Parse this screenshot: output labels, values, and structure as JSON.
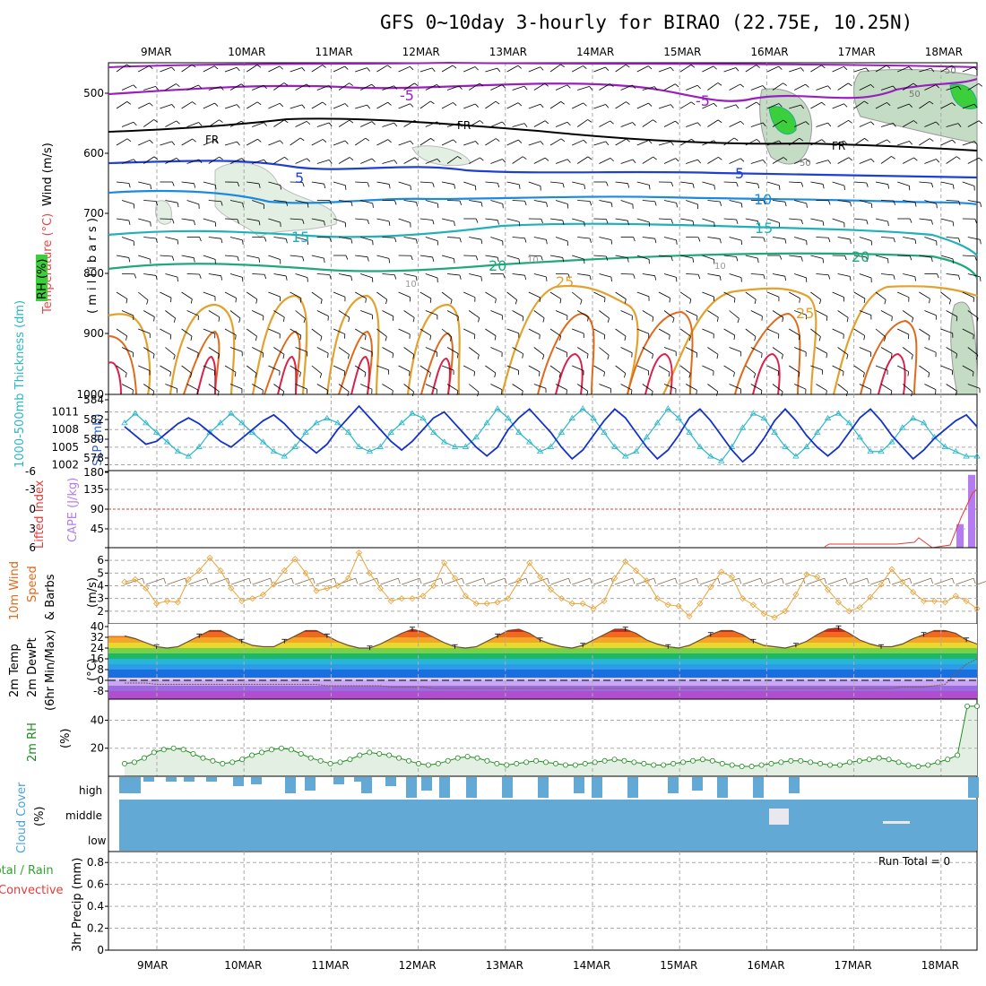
{
  "title": "GFS 0~10day 3-hourly for BIRAO (22.75E, 10.25N)",
  "dates": [
    "9MAR",
    "10MAR",
    "11MAR",
    "12MAR",
    "13MAR",
    "14MAR",
    "15MAR",
    "16MAR",
    "17MAR",
    "18MAR"
  ],
  "colors": {
    "rh_fill": "#e2efe2",
    "rh_mid": "#9fc99f",
    "rh_high": "#3ccf3c",
    "slp": "#1432c8",
    "thickness": "#2ab7c8",
    "cape": "#b47cf0",
    "lifted_index": "#e43b3b",
    "wind_speed": "#e8a43a",
    "barb": "#8a6d4e",
    "rh2m": "#1e8c1e",
    "cloud": "#62a9d6",
    "cloud_bg": "#f0f0f6"
  },
  "panels": {
    "upper": {
      "label_wind": "Wind (m/s)",
      "label_temp": "Temperature (°C)",
      "label_rh": "RH (%)",
      "label_mb": "( m i l l i b a r s )",
      "pressure_ticks": [
        "500",
        "600",
        "700",
        "800",
        "900",
        "1000"
      ],
      "isotherm_labels": [
        "-5",
        "-5",
        "FR",
        "FR",
        "FR",
        "5",
        "5",
        "10",
        "15",
        "15",
        "20",
        "20",
        "25",
        "25",
        "10",
        "10",
        "10",
        "50",
        "50",
        "50"
      ]
    },
    "slp": {
      "label_thick": "1000-500mb Thickness (dm)",
      "label_slp": "SLP (mb)",
      "left_ticks": [
        "584",
        "582",
        "580",
        "578"
      ],
      "right_ticks": [
        "1011",
        "1008",
        "1005",
        "1002"
      ]
    },
    "cape": {
      "label_li": "Lifted Index",
      "label_cape": "CAPE (J/kg)",
      "left_ticks": [
        "-6",
        "-3",
        "0",
        "3",
        "6"
      ],
      "right_ticks": [
        "180",
        "135",
        "90",
        "45"
      ]
    },
    "wind10": {
      "label1": "10m Wind",
      "label2": "Speed",
      "label3": "& Barbs",
      "unit": "(m/s)",
      "ticks": [
        "6",
        "5",
        "4",
        "3",
        "2"
      ]
    },
    "temp2m": {
      "label1": "2m Temp",
      "label2": "2m DewPt",
      "label3": "(6hr Min/Max)",
      "unit": "(°C)",
      "ticks": [
        "40",
        "32",
        "24",
        "16",
        "8",
        "0",
        "-8"
      ]
    },
    "rh2m": {
      "label": "2m RH",
      "unit": "(%)",
      "ticks": [
        "40",
        "20"
      ]
    },
    "cloud": {
      "label": "Cloud Cover",
      "unit": "(%)",
      "levels": [
        "high",
        "middle",
        "low"
      ]
    },
    "precip": {
      "label1": "3hr Precip (mm)",
      "label_total": "Total / Rain",
      "label_conv": "Convective",
      "run_total": "Run Total = 0",
      "ticks": [
        "0.8",
        "0.6",
        "0.4",
        "0.2",
        "0"
      ]
    }
  },
  "chart_data": [
    {
      "type": "line",
      "title": "1000-500mb Thickness (dm) / SLP (mb)",
      "x_unit": "3-hourly steps from 8MAR 12Z",
      "series": [
        {
          "name": "SLP (mb)",
          "values": [
            1008.5,
            1007,
            1005.5,
            1006,
            1007.5,
            1009,
            1010,
            1009,
            1007.5,
            1006,
            1005,
            1006.5,
            1008,
            1009.5,
            1010.5,
            1009,
            1007,
            1005.5,
            1004,
            1005.5,
            1008,
            1010,
            1012,
            1010,
            1008,
            1006,
            1004.5,
            1006,
            1008,
            1010,
            1011,
            1009,
            1007,
            1005,
            1003.5,
            1005,
            1008,
            1010,
            1011.5,
            1009.5,
            1007.5,
            1005,
            1003,
            1004.5,
            1007,
            1009.5,
            1011.5,
            1010,
            1007.5,
            1005,
            1003,
            1004.5,
            1007,
            1010,
            1011.5,
            1009.5,
            1007,
            1004.5,
            1002.5,
            1004,
            1006.5,
            1009.5,
            1011.5,
            1009.5,
            1007,
            1005,
            1003.5,
            1005,
            1007.5,
            1010,
            1011.5,
            1009.5,
            1007,
            1005,
            1003,
            1004.5,
            1006.5,
            1008,
            1009.5,
            1010.5,
            1008.5
          ]
        },
        {
          "name": "1000-500mb Thickness (dm)",
          "values": [
            582,
            583,
            582,
            581,
            580,
            579,
            578.5,
            579.5,
            581,
            582,
            583,
            582,
            581,
            580,
            579,
            578.5,
            579.5,
            581,
            582,
            582.5,
            582,
            581,
            579.5,
            579,
            579.5,
            581,
            582,
            583,
            582.5,
            581,
            580,
            579.5,
            579.5,
            580.5,
            582,
            583.5,
            582.5,
            581,
            580,
            579,
            579.5,
            581,
            582.5,
            583.5,
            582.5,
            581,
            579.5,
            578.5,
            579,
            580.5,
            582,
            583.5,
            582.5,
            581,
            579.5,
            578.5,
            578,
            579.5,
            581.5,
            583,
            582.5,
            581,
            579.5,
            578.5,
            579.5,
            581,
            582.5,
            583,
            582,
            580.5,
            579,
            579,
            580,
            581.5,
            582.5,
            582,
            580.5,
            579.5,
            579,
            578.5,
            578.5
          ]
        }
      ],
      "ylim_slp": [
        1001,
        1014
      ],
      "ylim_thickness": [
        577,
        585
      ]
    },
    {
      "type": "bar",
      "title": "CAPE (J/kg)",
      "categories": [
        "18MAR 03Z",
        "18MAR 06Z"
      ],
      "values": [
        55,
        170
      ],
      "ylim": [
        0,
        180
      ]
    },
    {
      "type": "line",
      "title": "10m Wind Speed (m/s)",
      "values": [
        4.3,
        4.5,
        3.8,
        2.6,
        2.8,
        2.7,
        4.5,
        5.2,
        6.2,
        5.2,
        3.8,
        2.8,
        3.0,
        3.3,
        4.1,
        5.2,
        6.1,
        5.0,
        3.6,
        3.8,
        4.0,
        4.6,
        6.6,
        5.0,
        3.8,
        2.8,
        3.0,
        3.0,
        3.2,
        4.0,
        5.8,
        4.6,
        3.2,
        2.6,
        2.6,
        2.7,
        3.0,
        4.4,
        5.8,
        4.7,
        3.7,
        3.0,
        2.6,
        2.6,
        2.2,
        2.8,
        4.6,
        5.9,
        5.2,
        4.4,
        3.0,
        2.5,
        2.4,
        1.6,
        2.6,
        3.9,
        5.1,
        4.7,
        3.0,
        2.5,
        1.8,
        1.5,
        2.0,
        3.3,
        4.9,
        4.7,
        3.7,
        2.7,
        2.0,
        2.3,
        3.1,
        4.1,
        5.3,
        4.3,
        3.5,
        2.8,
        2.8,
        2.7,
        3.2,
        2.8,
        2.2
      ],
      "ylim": [
        1,
        7
      ]
    },
    {
      "type": "line",
      "title": "2m Temp / 2m DewPt (°C)",
      "series": [
        {
          "name": "2m Temp",
          "values": [
            33,
            31,
            28,
            25,
            24,
            25,
            29,
            33,
            37,
            37,
            33,
            29,
            26,
            25,
            25,
            29,
            33,
            37,
            37,
            33,
            29,
            26,
            24,
            24,
            27,
            31,
            35,
            38,
            36,
            32,
            28,
            25,
            24,
            25,
            29,
            33,
            37,
            38,
            35,
            30,
            27,
            25,
            24,
            26,
            30,
            34,
            38,
            38,
            35,
            30,
            27,
            25,
            24,
            26,
            30,
            34,
            37,
            37,
            34,
            29,
            26,
            25,
            24,
            26,
            29,
            34,
            38,
            39,
            35,
            30,
            27,
            25,
            25,
            27,
            31,
            34,
            37,
            37,
            35,
            30,
            27
          ]
        },
        {
          "name": "2m DewPt",
          "values": [
            -2,
            -2,
            -2,
            -3,
            -3,
            -3,
            -3,
            -3,
            -3,
            -3,
            -3,
            -3,
            -3,
            -3,
            -3,
            -3,
            -3,
            -3,
            -3,
            -4,
            -4,
            -4,
            -4,
            -4,
            -4,
            -5,
            -5,
            -5,
            -5,
            -6,
            -6,
            -6,
            -6,
            -6,
            -6,
            -6,
            -6,
            -6,
            -6,
            -6,
            -6,
            -6,
            -6,
            -6,
            -6,
            -6,
            -6,
            -6,
            -6,
            -6,
            -6,
            -6,
            -6,
            -6,
            -6,
            -6,
            -6,
            -6,
            -6,
            -6,
            -6,
            -6,
            -6,
            -6,
            -6,
            -6,
            -6,
            -6,
            -6,
            -6,
            -6,
            -6,
            -6,
            -5,
            -5,
            -5,
            -4,
            -3,
            5,
            12,
            16
          ]
        }
      ],
      "ylim": [
        -14,
        42
      ]
    },
    {
      "type": "area",
      "title": "2m RH (%)",
      "values": [
        9,
        10,
        13,
        17,
        19,
        20,
        19,
        16,
        13,
        11,
        9,
        10,
        12,
        15,
        17,
        19,
        20,
        19,
        16,
        13,
        11,
        9,
        10,
        12,
        15,
        17,
        16,
        15,
        13,
        11,
        9,
        8,
        9,
        11,
        13,
        14,
        13,
        11,
        9,
        8,
        9,
        10,
        11,
        10,
        9,
        8,
        8,
        9,
        10,
        11,
        12,
        11,
        10,
        9,
        8,
        8,
        9,
        10,
        11,
        12,
        11,
        9,
        8,
        7,
        7,
        8,
        9,
        10,
        11,
        11,
        10,
        9,
        8,
        8,
        10,
        11,
        12,
        13,
        12,
        10,
        8,
        7,
        8,
        10,
        12,
        15,
        50,
        50
      ],
      "ylim": [
        0,
        55
      ]
    },
    {
      "type": "table",
      "title": "3hr Precip (mm)",
      "values": [
        0
      ],
      "ylim": [
        0,
        0.9
      ]
    }
  ]
}
